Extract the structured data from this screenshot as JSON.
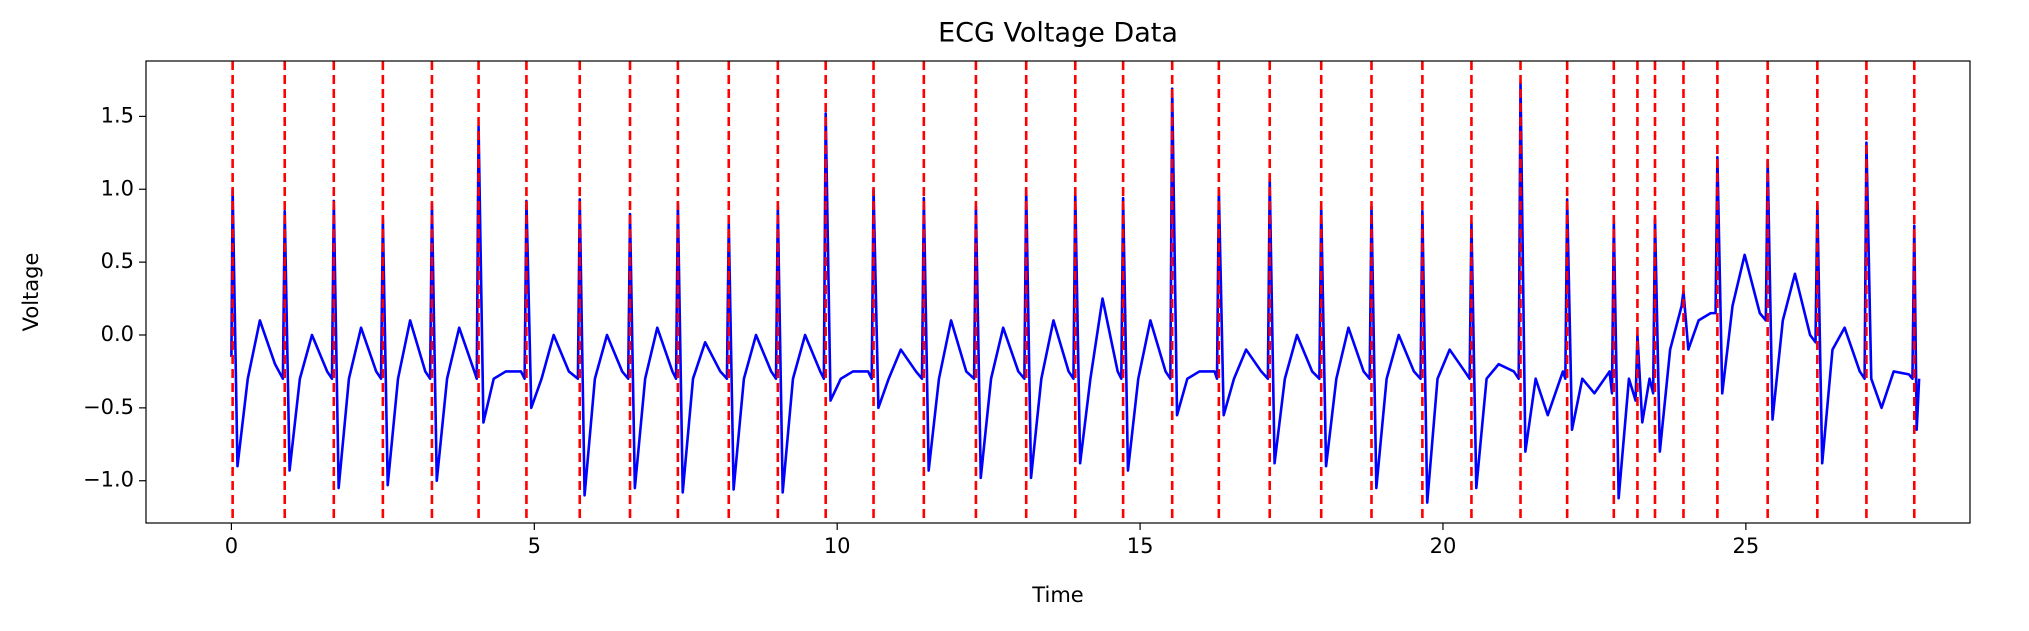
{
  "chart_data": {
    "type": "line",
    "title": "ECG Voltage Data",
    "xlabel": "Time",
    "ylabel": "Voltage",
    "xlim": [
      -1.41,
      28.7
    ],
    "ylim": [
      -1.29,
      1.88
    ],
    "xticks": [
      0,
      5,
      10,
      15,
      20,
      25
    ],
    "yticks": [
      {
        "value": -1.0,
        "label": "−1.0"
      },
      {
        "value": -0.5,
        "label": "−0.5"
      },
      {
        "value": 0.0,
        "label": "0.0"
      },
      0.5,
      {
        "value": 1.0,
        "label": "1.0"
      },
      1.5
    ],
    "x": [
      0.0,
      0.02,
      0.1,
      0.27,
      0.47,
      0.72,
      0.85,
      0.88,
      0.96,
      1.13,
      1.33,
      1.58,
      1.66,
      1.69,
      1.77,
      1.94,
      2.14,
      2.39,
      2.47,
      2.5,
      2.58,
      2.75,
      2.95,
      3.2,
      3.28,
      3.31,
      3.39,
      3.56,
      3.76,
      4.01,
      4.05,
      4.08,
      4.16,
      4.33,
      4.53,
      4.78,
      4.84,
      4.87,
      4.95,
      5.12,
      5.32,
      5.57,
      5.72,
      5.75,
      5.83,
      6.0,
      6.2,
      6.45,
      6.55,
      6.58,
      6.66,
      6.83,
      7.03,
      7.28,
      7.34,
      7.37,
      7.45,
      7.62,
      7.82,
      8.07,
      8.18,
      8.21,
      8.29,
      8.46,
      8.66,
      8.91,
      8.99,
      9.02,
      9.1,
      9.27,
      9.47,
      9.72,
      9.78,
      9.81,
      9.89,
      10.06,
      10.26,
      10.51,
      10.57,
      10.6,
      10.68,
      10.85,
      11.05,
      11.3,
      11.4,
      11.43,
      11.51,
      11.68,
      11.88,
      12.13,
      12.26,
      12.29,
      12.37,
      12.54,
      12.74,
      12.99,
      13.09,
      13.12,
      13.2,
      13.37,
      13.57,
      13.82,
      13.9,
      13.93,
      14.01,
      14.18,
      14.38,
      14.63,
      14.69,
      14.72,
      14.8,
      14.97,
      15.17,
      15.42,
      15.5,
      15.53,
      15.61,
      15.78,
      15.98,
      16.23,
      16.27,
      16.3,
      16.38,
      16.55,
      16.75,
      17.0,
      17.11,
      17.14,
      17.22,
      17.39,
      17.59,
      17.84,
      17.96,
      17.99,
      18.07,
      18.24,
      18.44,
      18.69,
      18.79,
      18.82,
      18.9,
      19.07,
      19.27,
      19.52,
      19.63,
      19.66,
      19.74,
      19.91,
      20.11,
      20.36,
      20.44,
      20.47,
      20.55,
      20.72,
      20.92,
      21.17,
      21.25,
      21.28,
      21.36,
      21.53,
      21.73,
      21.98,
      22.02,
      22.05,
      22.13,
      22.3,
      22.5,
      22.75,
      22.79,
      22.82,
      22.9,
      23.07,
      23.18,
      23.21,
      23.29,
      23.41,
      23.47,
      23.5,
      23.58,
      23.75,
      23.94,
      23.97,
      24.05,
      24.22,
      24.42,
      24.5,
      24.53,
      24.61,
      24.78,
      24.98,
      25.23,
      25.33,
      25.36,
      25.44,
      25.61,
      25.81,
      26.06,
      26.15,
      26.18,
      26.26,
      26.43,
      26.63,
      26.88,
      26.96,
      26.99,
      27.07,
      27.24,
      27.44,
      27.69,
      27.75,
      27.78,
      27.82,
      27.86
    ],
    "series": [
      {
        "color": "#0000ff",
        "values": [
          -0.15,
          1.0,
          -0.9,
          -0.3,
          0.1,
          -0.2,
          -0.3,
          0.85,
          -0.93,
          -0.3,
          0.0,
          -0.25,
          -0.3,
          0.92,
          -1.05,
          -0.3,
          0.05,
          -0.25,
          -0.3,
          0.8,
          -1.03,
          -0.3,
          0.1,
          -0.25,
          -0.3,
          0.9,
          -1.0,
          -0.3,
          0.05,
          -0.25,
          -0.3,
          1.43,
          -0.6,
          -0.3,
          -0.25,
          -0.25,
          -0.3,
          0.92,
          -0.5,
          -0.3,
          0.0,
          -0.25,
          -0.3,
          0.93,
          -1.1,
          -0.3,
          0.0,
          -0.25,
          -0.3,
          0.83,
          -1.05,
          -0.3,
          0.05,
          -0.25,
          -0.3,
          0.9,
          -1.08,
          -0.3,
          -0.05,
          -0.25,
          -0.3,
          0.77,
          -1.06,
          -0.3,
          0.0,
          -0.25,
          -0.3,
          0.88,
          -1.08,
          -0.3,
          0.0,
          -0.25,
          -0.3,
          1.52,
          -0.45,
          -0.3,
          -0.25,
          -0.25,
          -0.3,
          1.0,
          -0.5,
          -0.3,
          -0.1,
          -0.25,
          -0.3,
          0.94,
          -0.93,
          -0.3,
          0.1,
          -0.25,
          -0.3,
          0.88,
          -0.98,
          -0.3,
          0.05,
          -0.25,
          -0.3,
          1.0,
          -0.98,
          -0.3,
          0.1,
          -0.25,
          -0.3,
          0.97,
          -0.88,
          -0.3,
          0.25,
          -0.25,
          -0.3,
          0.94,
          -0.93,
          -0.3,
          0.1,
          -0.25,
          -0.3,
          1.69,
          -0.55,
          -0.3,
          -0.25,
          -0.25,
          -0.3,
          1.0,
          -0.55,
          -0.3,
          -0.1,
          -0.25,
          -0.3,
          1.07,
          -0.88,
          -0.3,
          0.0,
          -0.25,
          -0.3,
          0.88,
          -0.9,
          -0.3,
          0.05,
          -0.25,
          -0.3,
          0.88,
          -1.05,
          -0.3,
          0.0,
          -0.25,
          -0.3,
          0.85,
          -1.15,
          -0.3,
          -0.1,
          -0.25,
          -0.3,
          0.77,
          -1.05,
          -0.3,
          -0.2,
          -0.25,
          -0.3,
          1.73,
          -0.8,
          -0.3,
          -0.55,
          -0.25,
          -0.3,
          0.93,
          -0.65,
          -0.3,
          -0.4,
          -0.25,
          -0.4,
          0.78,
          -1.12,
          -0.3,
          -0.45,
          0.0,
          -0.6,
          -0.3,
          -0.4,
          0.8,
          -0.8,
          -0.1,
          0.2,
          0.3,
          -0.1,
          0.1,
          0.15,
          0.15,
          1.22,
          -0.4,
          0.2,
          0.55,
          0.15,
          0.1,
          1.2,
          -0.58,
          0.1,
          0.42,
          0.0,
          -0.05,
          0.9,
          -0.88,
          -0.1,
          0.05,
          -0.25,
          -0.3,
          1.32,
          -0.3,
          -0.5,
          -0.25,
          -0.27,
          -0.3,
          0.75,
          -0.65,
          -0.3
        ]
      }
    ],
    "vlines": {
      "color": "#ff0000",
      "style": "dashed",
      "x": [
        0.02,
        0.88,
        1.69,
        2.5,
        3.31,
        4.08,
        4.87,
        5.75,
        6.58,
        7.37,
        8.21,
        9.02,
        9.81,
        10.6,
        11.43,
        12.29,
        13.12,
        13.93,
        14.72,
        15.53,
        16.3,
        17.14,
        17.99,
        18.82,
        19.66,
        20.47,
        21.28,
        22.05,
        22.82,
        23.21,
        23.5,
        23.97,
        24.53,
        25.36,
        26.18,
        26.99,
        27.78
      ]
    }
  }
}
